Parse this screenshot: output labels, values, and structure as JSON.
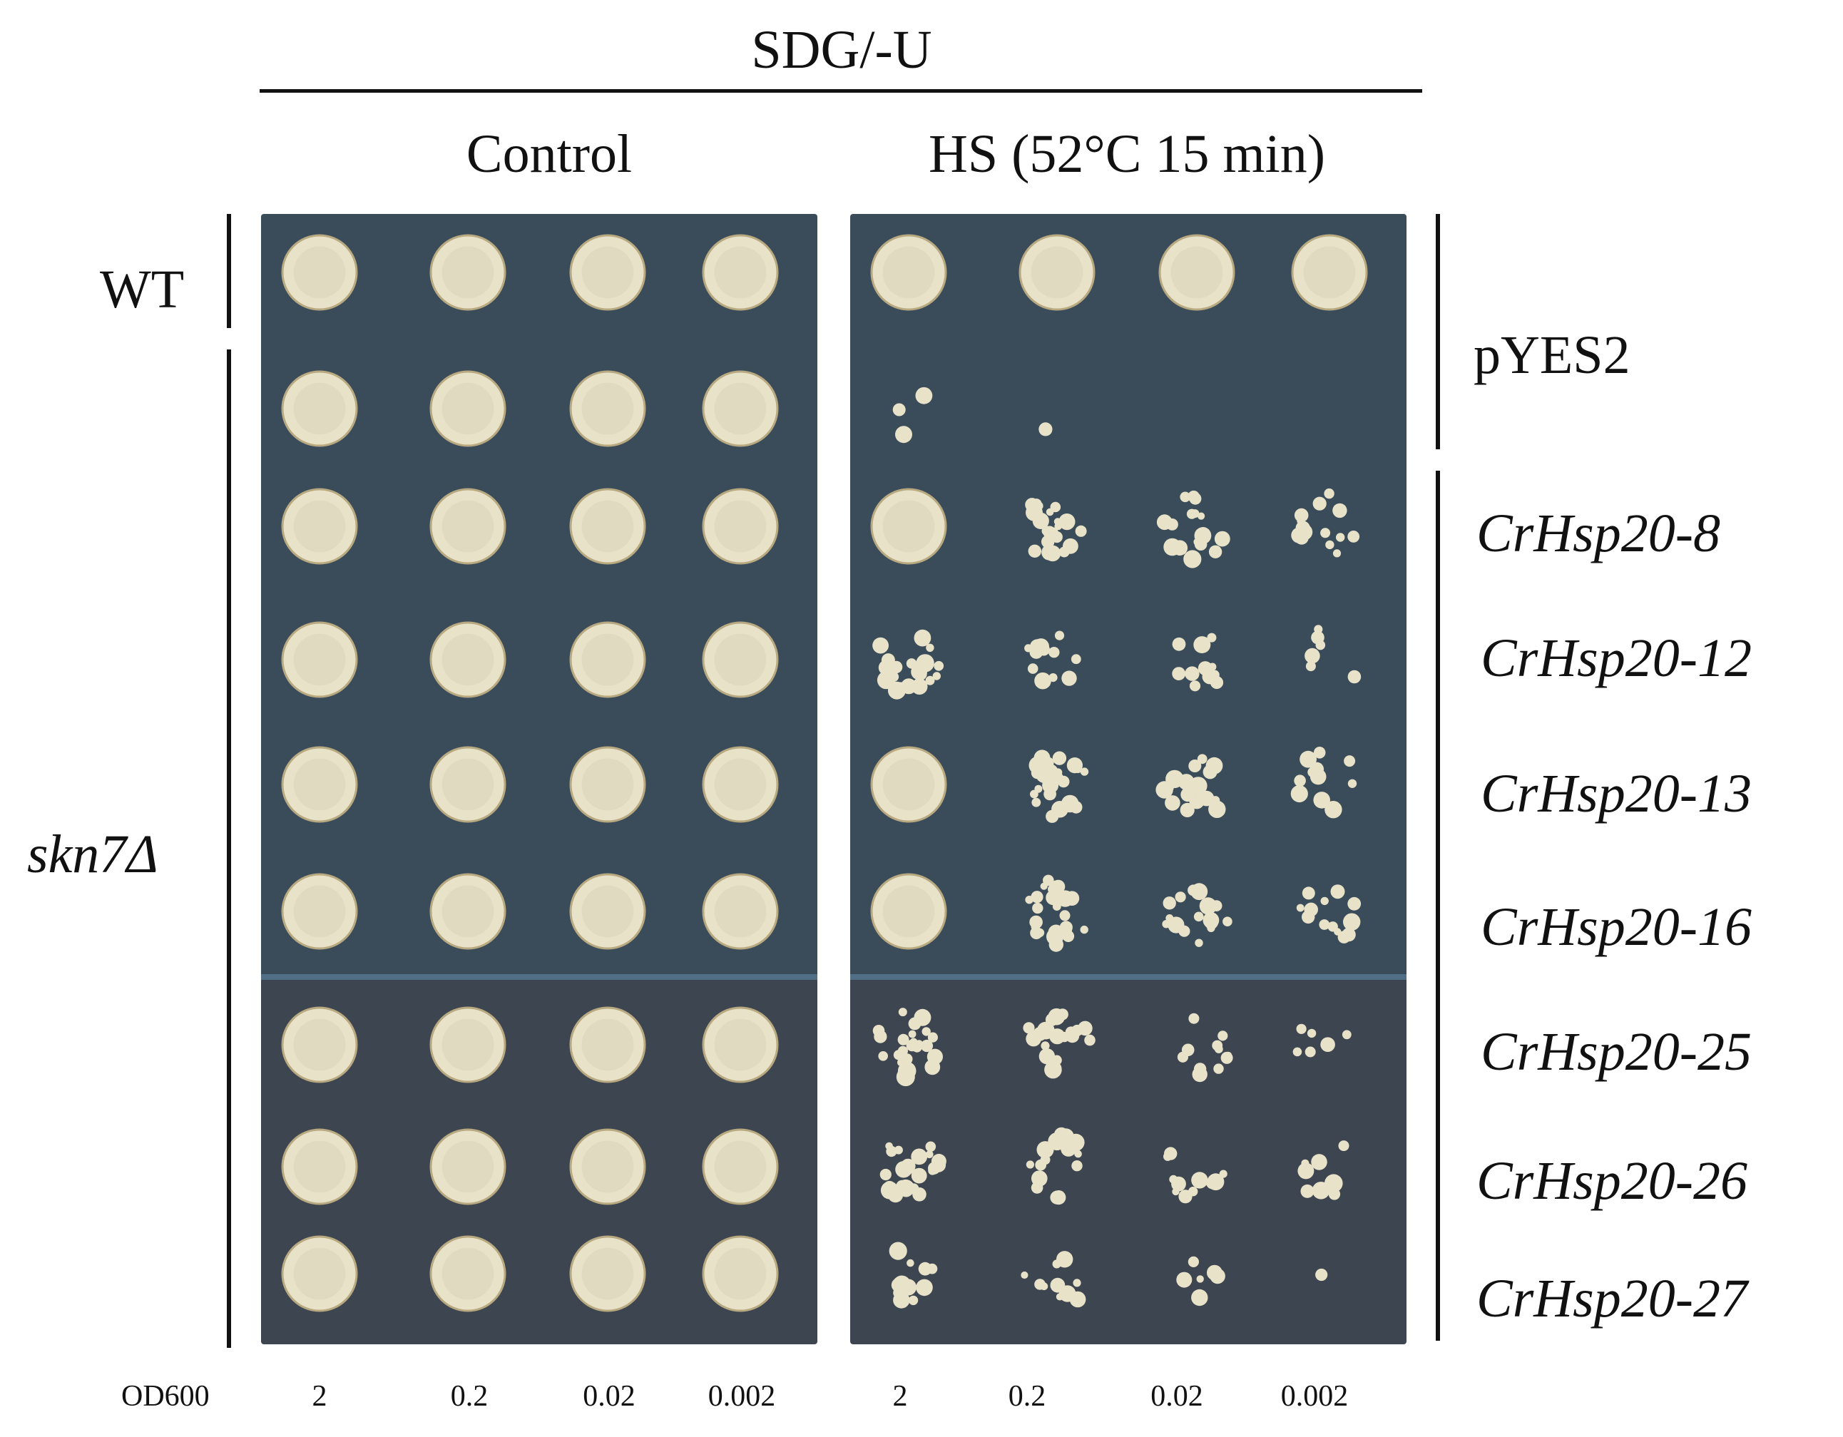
{
  "header": {
    "medium": "SDG/-U",
    "control_label": "Control",
    "hs_label": "HS (52°C  15 min)"
  },
  "left_labels": {
    "wt": "WT",
    "mutant": "skn7Δ"
  },
  "right_labels": {
    "vector": "pYES2",
    "constructs": [
      "CrHsp20-8",
      "CrHsp20-12",
      "CrHsp20-13",
      "CrHsp20-16",
      "CrHsp20-25",
      "CrHsp20-26",
      "CrHsp20-27"
    ]
  },
  "dilutions": {
    "axis_label": "OD600",
    "control": [
      "2",
      "0.2",
      "0.02",
      "0.002"
    ],
    "hs": [
      "2",
      "0.2",
      "0.02",
      "0.002"
    ]
  },
  "colors": {
    "plate_top": "#3a4c5a",
    "plate_bottom": "#3d4550",
    "colony": "#e8e2c8"
  },
  "growth": {
    "note_levels": "0 = no growth, 1 = confluent spot",
    "control": [
      [
        1,
        1,
        1,
        1
      ],
      [
        1,
        1,
        1,
        1
      ],
      [
        1,
        1,
        1,
        1
      ],
      [
        1,
        1,
        1,
        1
      ],
      [
        1,
        1,
        1,
        1
      ],
      [
        1,
        1,
        1,
        1
      ],
      [
        1,
        1,
        1,
        1
      ],
      [
        1,
        1,
        1,
        1
      ],
      [
        1,
        1,
        1,
        1
      ]
    ],
    "hs": [
      [
        1,
        1,
        1,
        1
      ],
      [
        0.1,
        0.05,
        0,
        0
      ],
      [
        1,
        0.8,
        0.6,
        0.5
      ],
      [
        0.8,
        0.5,
        0.4,
        0.2
      ],
      [
        1,
        0.9,
        0.6,
        0.4
      ],
      [
        1,
        0.9,
        0.6,
        0.5
      ],
      [
        0.9,
        0.8,
        0.4,
        0.2
      ],
      [
        0.9,
        0.6,
        0.4,
        0.3
      ],
      [
        0.4,
        0.4,
        0.2,
        0.05
      ]
    ]
  }
}
